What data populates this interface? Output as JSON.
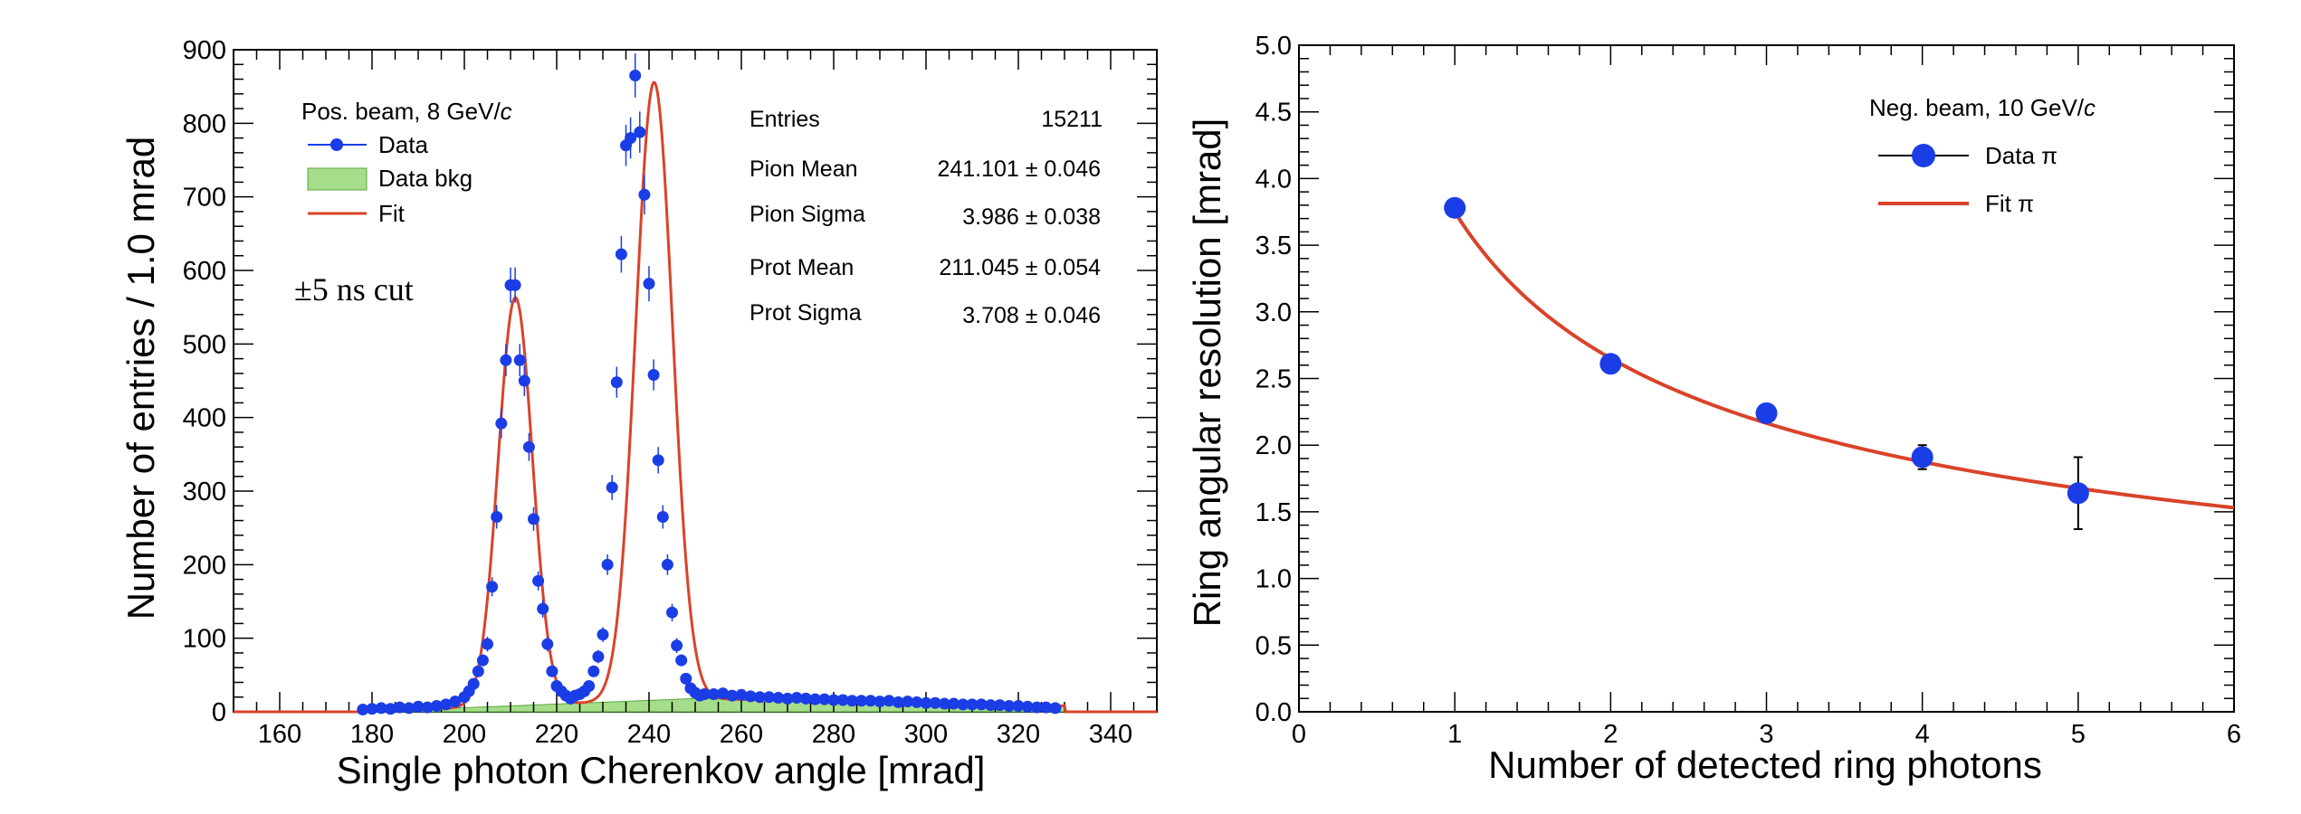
{
  "colors": {
    "data": "#1a3de6",
    "fit": "#d9432a",
    "bkg_fill": "#a6dd8a",
    "bkg_edge": "#5aa83a",
    "axis": "#000000"
  },
  "chart_data": [
    {
      "type": "scatter",
      "xlabel": "Single photon Cherenkov angle [mrad]",
      "ylabel": "Number of entries / 1.0 mrad",
      "xlim": [
        150,
        350
      ],
      "ylim": [
        0,
        900
      ],
      "x_ticks": [
        160,
        180,
        200,
        220,
        240,
        260,
        280,
        300,
        320,
        340
      ],
      "y_ticks": [
        0,
        100,
        200,
        300,
        400,
        500,
        600,
        700,
        800,
        900
      ],
      "grid": false,
      "legend_placement": "top-left",
      "legend": {
        "header": "Pos. beam, 8 GeV/",
        "header_italic": "c",
        "entries": [
          "Data",
          "Data bkg",
          "Fit"
        ]
      },
      "annotation": "±5 ns cut",
      "stats": [
        {
          "label": "Entries",
          "value": "15211"
        },
        {
          "label": "Pion Mean",
          "value": "241.101 ±  0.046"
        },
        {
          "label": "Pion Sigma",
          "value": "3.986 ±  0.038"
        },
        {
          "label": "Prot Mean",
          "value": "211.045 ±  0.054"
        },
        {
          "label": "Prot Sigma",
          "value": "3.708 ±  0.046"
        }
      ],
      "fit": {
        "proton_mean": 211.045,
        "proton_sigma": 3.708,
        "proton_amp": 555,
        "pion_mean": 241.101,
        "pion_sigma": 3.986,
        "pion_amp": 840,
        "bkg_start": 178,
        "bkg_peak_x": 250,
        "bkg_peak_y": 18,
        "bkg_end": 330
      },
      "series": [
        {
          "name": "Data",
          "x": [
            178,
            180,
            182,
            184,
            186,
            188,
            190,
            192,
            194,
            196,
            198,
            200,
            201,
            202,
            203,
            204,
            205,
            206,
            207,
            208,
            209,
            210,
            211,
            212,
            213,
            214,
            215,
            216,
            217,
            218,
            219,
            220,
            221,
            222,
            223,
            224,
            225,
            226,
            227,
            228,
            229,
            230,
            231,
            232,
            233,
            234,
            235,
            236,
            237,
            238,
            239,
            240,
            241,
            242,
            243,
            244,
            245,
            246,
            247,
            248,
            249,
            250,
            251,
            252,
            254,
            256,
            258,
            260,
            262,
            264,
            266,
            268,
            270,
            272,
            274,
            276,
            278,
            280,
            282,
            284,
            286,
            288,
            290,
            292,
            294,
            296,
            298,
            300,
            302,
            304,
            306,
            308,
            310,
            312,
            314,
            316,
            318,
            320,
            322,
            324,
            326,
            328
          ],
          "y": [
            3,
            4,
            5,
            4,
            6,
            5,
            7,
            6,
            8,
            10,
            14,
            20,
            28,
            38,
            55,
            70,
            92,
            170,
            265,
            392,
            478,
            580,
            580,
            478,
            450,
            360,
            262,
            178,
            140,
            92,
            55,
            35,
            28,
            22,
            18,
            22,
            24,
            28,
            35,
            55,
            75,
            105,
            200,
            305,
            448,
            622,
            770,
            780,
            865,
            788,
            703,
            582,
            458,
            342,
            265,
            200,
            135,
            90,
            70,
            45,
            32,
            26,
            22,
            24,
            24,
            25,
            22,
            23,
            21,
            20,
            20,
            19,
            18,
            19,
            18,
            17,
            17,
            16,
            16,
            15,
            15,
            15,
            14,
            15,
            13,
            14,
            13,
            12,
            12,
            11,
            11,
            10,
            10,
            10,
            9,
            9,
            8,
            8,
            7,
            6,
            6,
            5
          ],
          "y_err": [
            2,
            2,
            2,
            2,
            2,
            2,
            3,
            2,
            3,
            3,
            4,
            4,
            5,
            6,
            7,
            8,
            10,
            13,
            16,
            20,
            22,
            24,
            24,
            22,
            21,
            19,
            16,
            13,
            12,
            10,
            7,
            6,
            5,
            5,
            4,
            5,
            5,
            5,
            6,
            7,
            9,
            10,
            14,
            17,
            21,
            25,
            28,
            28,
            30,
            28,
            27,
            24,
            21,
            18,
            16,
            14,
            12,
            10,
            8,
            7,
            6,
            5,
            5,
            5,
            5,
            5,
            5,
            5,
            5,
            5,
            5,
            4,
            4,
            4,
            4,
            4,
            4,
            4,
            4,
            4,
            4,
            4,
            4,
            4,
            4,
            4,
            4,
            3,
            3,
            3,
            3,
            3,
            3,
            3,
            3,
            3,
            3,
            3,
            3,
            3,
            2,
            2
          ]
        }
      ]
    },
    {
      "type": "scatter",
      "xlabel": "Number of detected ring photons",
      "ylabel": "Ring angular resolution [mrad]",
      "xlim": [
        0,
        6
      ],
      "ylim": [
        0,
        5
      ],
      "x_ticks": [
        0,
        1,
        2,
        3,
        4,
        5,
        6
      ],
      "y_ticks": [
        "0.0",
        "0.5",
        "1.0",
        "1.5",
        "2.0",
        "2.5",
        "3.0",
        "3.5",
        "4.0",
        "4.5",
        "5.0"
      ],
      "grid": false,
      "legend_placement": "top-right",
      "legend": {
        "header": "Neg. beam, 10 GeV/",
        "header_italic": "c",
        "entries": [
          "Data π",
          "Fit π"
        ]
      },
      "fit": {
        "sigma1": 3.75,
        "sigma0": 0.0,
        "x_start": 1.0,
        "x_end": 6.0
      },
      "series": [
        {
          "name": "Data π",
          "x": [
            1,
            2,
            3,
            4,
            5
          ],
          "y": [
            3.78,
            2.61,
            2.24,
            1.91,
            1.64
          ],
          "y_err": [
            0.03,
            0.04,
            0.05,
            0.09,
            0.27
          ]
        }
      ]
    }
  ]
}
